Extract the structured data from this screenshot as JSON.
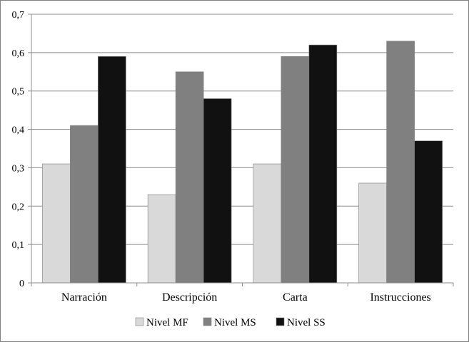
{
  "chart_data": {
    "type": "bar",
    "categories": [
      "Narración",
      "Descripción",
      "Carta",
      "Instrucciones"
    ],
    "series": [
      {
        "name": "Nivel MF",
        "color": "#d9d9d9",
        "values": [
          0.31,
          0.23,
          0.31,
          0.26
        ]
      },
      {
        "name": "Nivel MS",
        "color": "#808080",
        "values": [
          0.41,
          0.55,
          0.59,
          0.63
        ]
      },
      {
        "name": "Nivel SS",
        "color": "#111111",
        "values": [
          0.59,
          0.48,
          0.62,
          0.37
        ]
      }
    ],
    "yticks": [
      "0",
      "0,1",
      "0,2",
      "0,3",
      "0,4",
      "0,5",
      "0,6",
      "0,7"
    ],
    "ylim": [
      0,
      0.7
    ],
    "grid": true,
    "legend_position": "bottom"
  }
}
